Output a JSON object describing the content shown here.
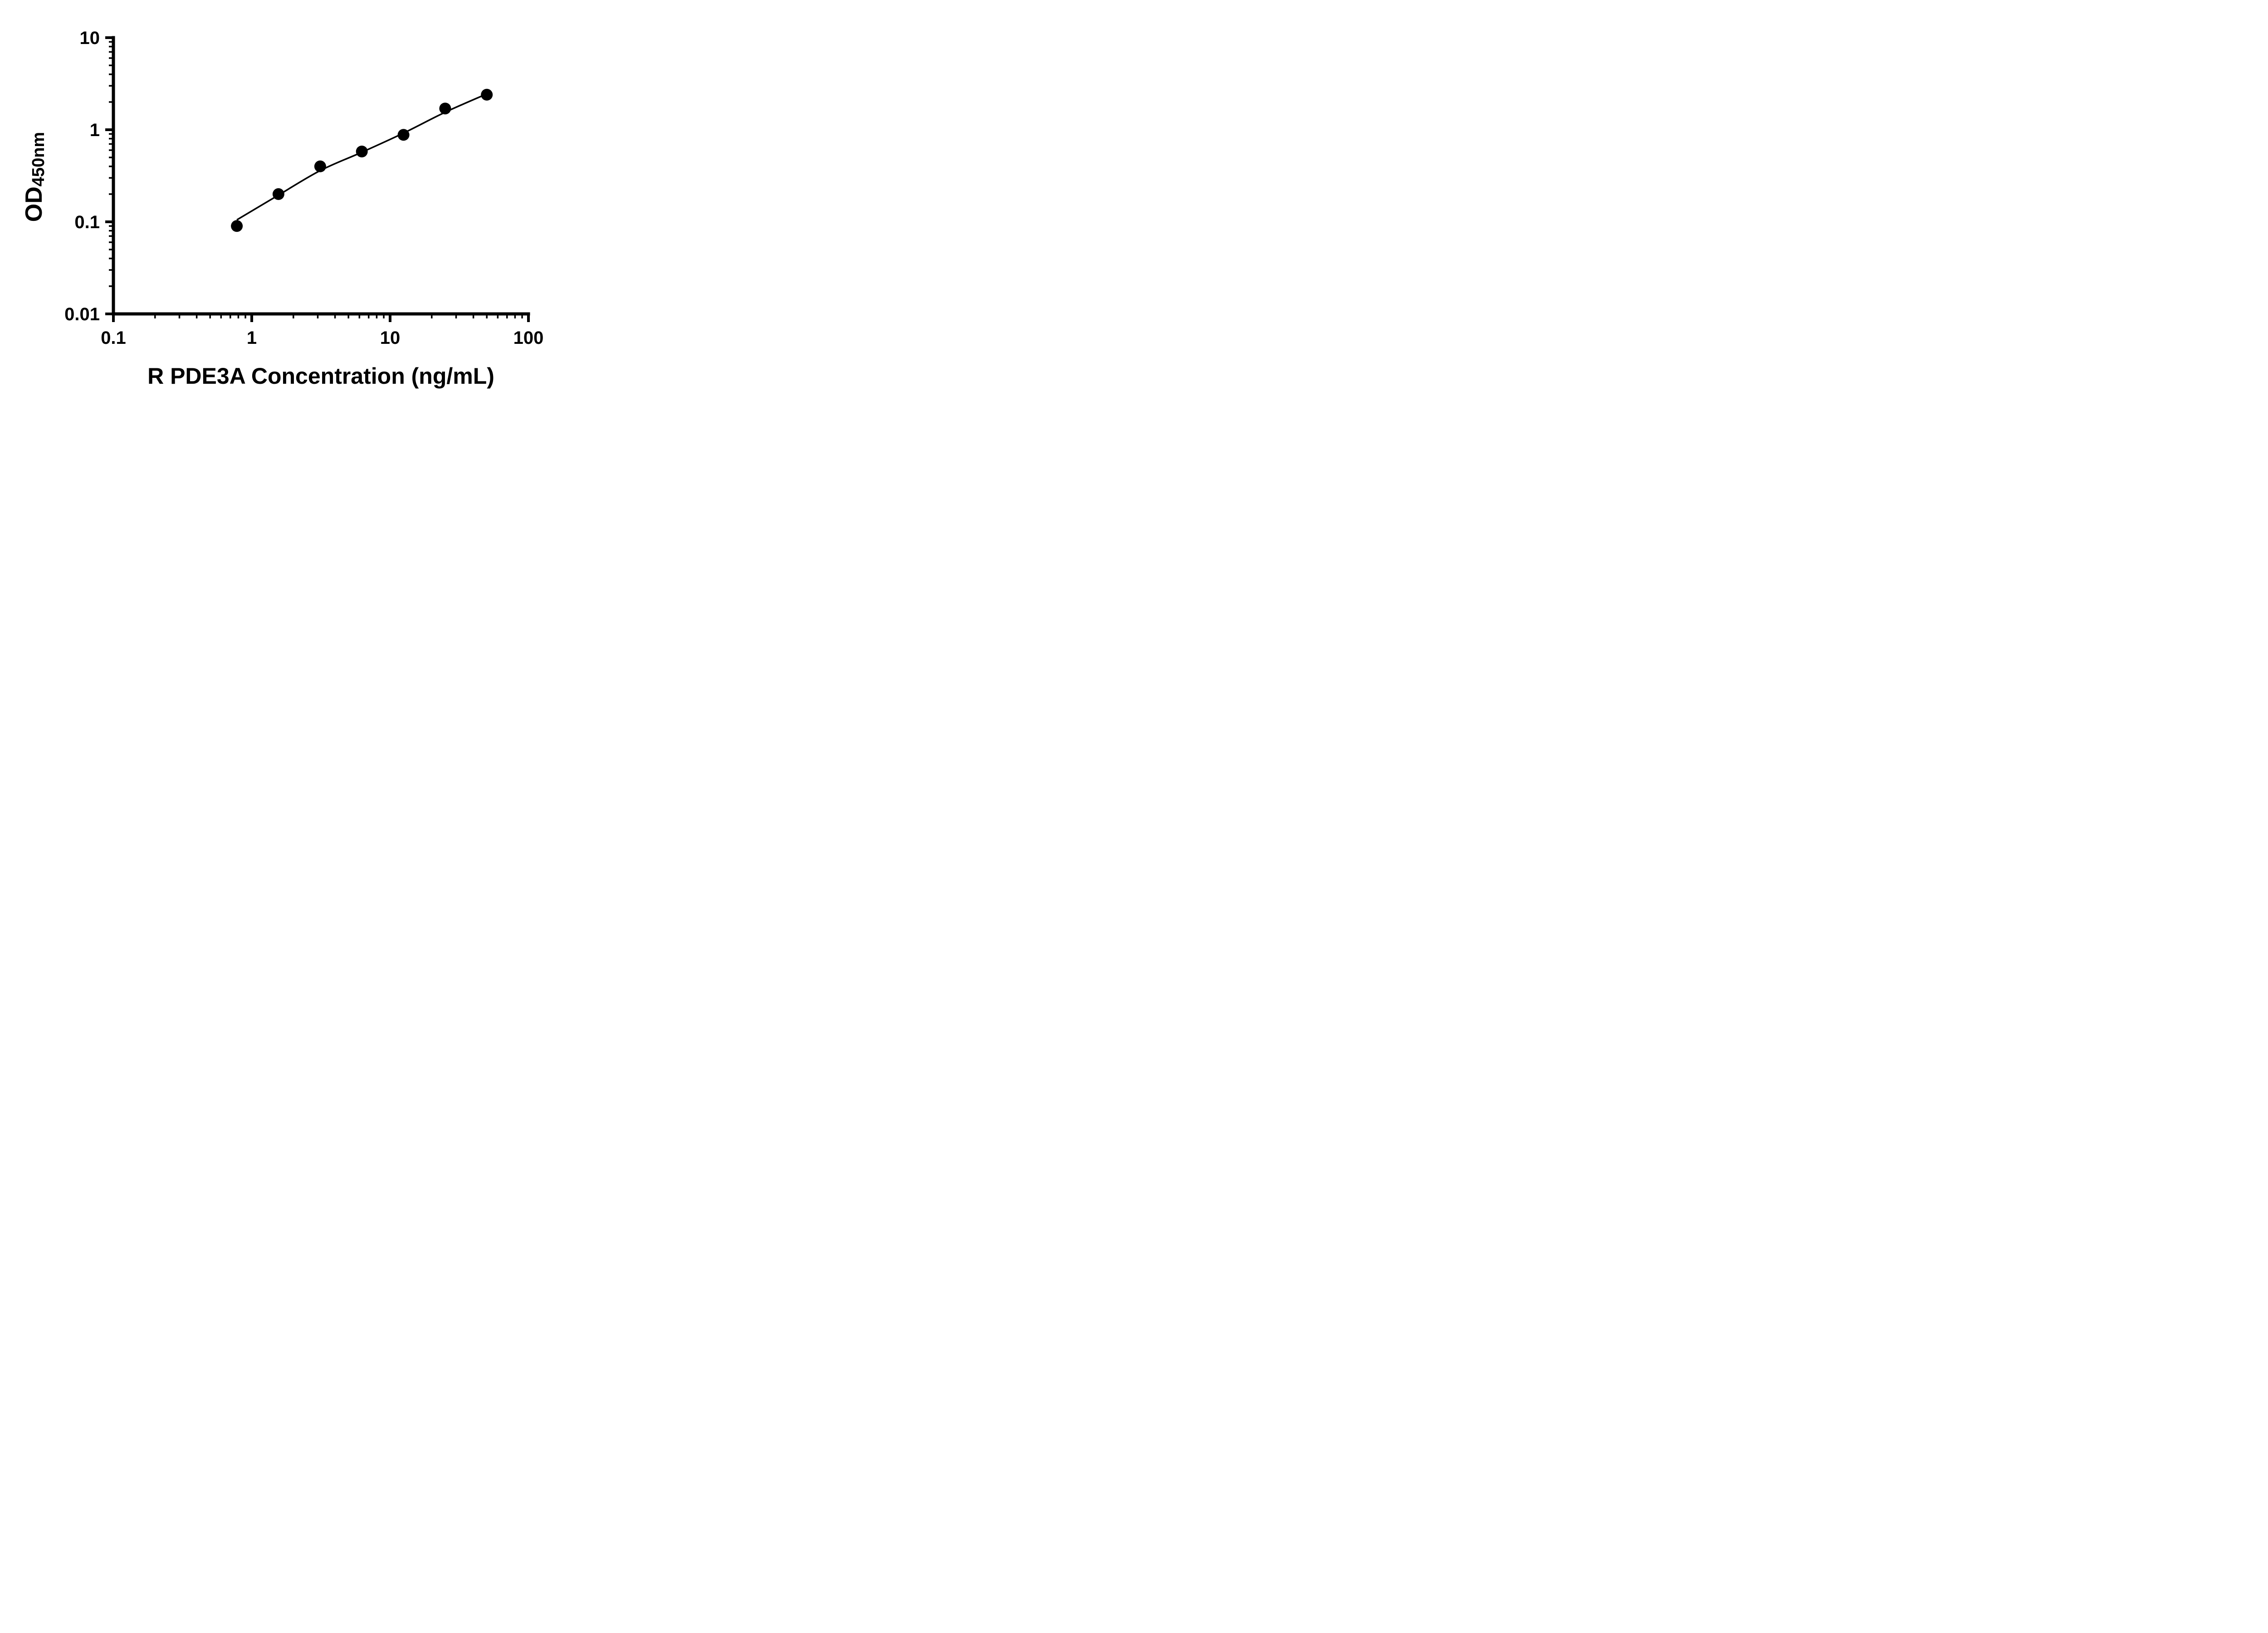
{
  "chart_data": {
    "type": "scatter",
    "title": "",
    "xlabel": "R PDE3A Concentration (ng/mL)",
    "ylabel_main": "OD",
    "ylabel_sub": "450nm",
    "x_scale": "log",
    "y_scale": "log",
    "xlim": [
      0.1,
      100
    ],
    "ylim": [
      0.01,
      10
    ],
    "x_ticks": [
      0.1,
      1,
      10,
      100
    ],
    "x_tick_labels": [
      "0.1",
      "1",
      "10",
      "100"
    ],
    "y_ticks": [
      0.01,
      0.1,
      1,
      10
    ],
    "y_tick_labels": [
      "0.01",
      "0.1",
      "1",
      "10"
    ],
    "x_minor_ticks": true,
    "y_minor_ticks": true,
    "grid": false,
    "legend": null,
    "marker_color": "#000000",
    "line_color": "#000000",
    "points": {
      "x": [
        0.78,
        1.56,
        3.125,
        6.25,
        12.5,
        25,
        50
      ],
      "y": [
        0.09,
        0.2,
        0.4,
        0.58,
        0.88,
        1.7,
        2.4
      ]
    },
    "fit_line": {
      "type": "4PL-style smooth fit",
      "x": [
        0.78,
        1.56,
        3.125,
        6.25,
        12.5,
        25,
        50
      ],
      "y": [
        0.105,
        0.195,
        0.36,
        0.57,
        0.92,
        1.55,
        2.45
      ]
    }
  }
}
